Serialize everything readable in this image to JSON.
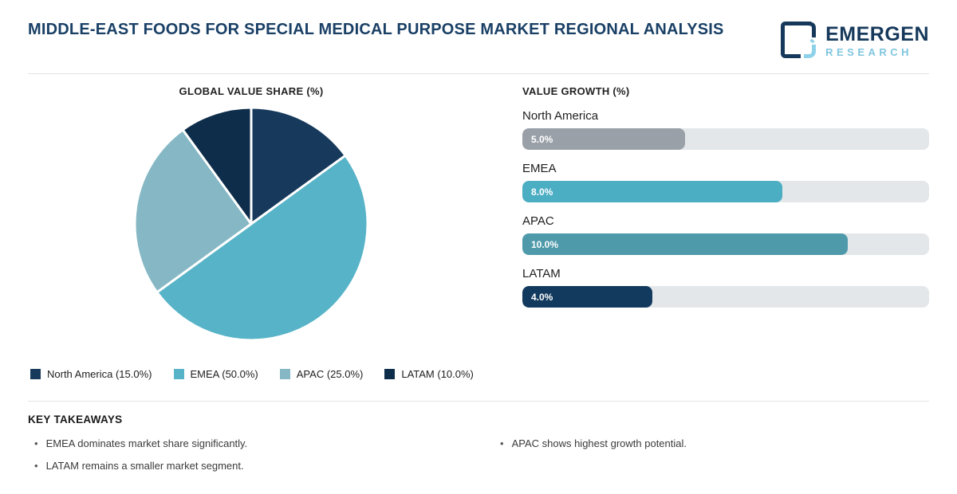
{
  "header": {
    "title": "MIDDLE-EAST FOODS FOR SPECIAL MEDICAL PURPOSE MARKET REGIONAL ANALYSIS",
    "brand": {
      "name": "EMERGEN",
      "subname": "RESEARCH"
    }
  },
  "colors": {
    "title_navy": "#1A4066",
    "logo_navy": "#16395B",
    "logo_lightblue": "#8ED2EA",
    "bar_track": "#E3E7EA",
    "divider": "#E2E2E2"
  },
  "chart_data": [
    {
      "type": "pie",
      "title": "GLOBAL VALUE SHARE (%)",
      "categories": [
        "North America",
        "EMEA",
        "APAC",
        "LATAM"
      ],
      "values": [
        15.0,
        50.0,
        25.0,
        10.0
      ],
      "colors": [
        "#16395C",
        "#57B3C7",
        "#85B7C5",
        "#0D2D4A"
      ],
      "start_angle_deg": 0,
      "direction": "clockwise",
      "slice_stroke": "#ffffff",
      "legend_position": "bottom",
      "legend_labels": [
        "North America (15.0%)",
        "EMEA (50.0%)",
        "APAC (25.0%)",
        "LATAM (10.0%)"
      ]
    },
    {
      "type": "bar",
      "title": "VALUE GROWTH (%)",
      "orientation": "horizontal",
      "categories": [
        "North America",
        "EMEA",
        "APAC",
        "LATAM"
      ],
      "values": [
        5.0,
        8.0,
        10.0,
        4.0
      ],
      "value_labels": [
        "5.0%",
        "8.0%",
        "10.0%",
        "4.0%"
      ],
      "colors": [
        "#9AA0A8",
        "#4BAEC3",
        "#4E99AA",
        "#123A5E"
      ],
      "xlim": [
        0,
        12.5
      ],
      "grid": false
    }
  ],
  "takeaways": {
    "heading": "KEY TAKEAWAYS",
    "bullet": "•",
    "columns": [
      {
        "items": [
          "EMEA dominates market share significantly.",
          "LATAM remains a smaller market segment."
        ]
      },
      {
        "items": [
          "APAC shows highest growth potential."
        ]
      }
    ]
  }
}
